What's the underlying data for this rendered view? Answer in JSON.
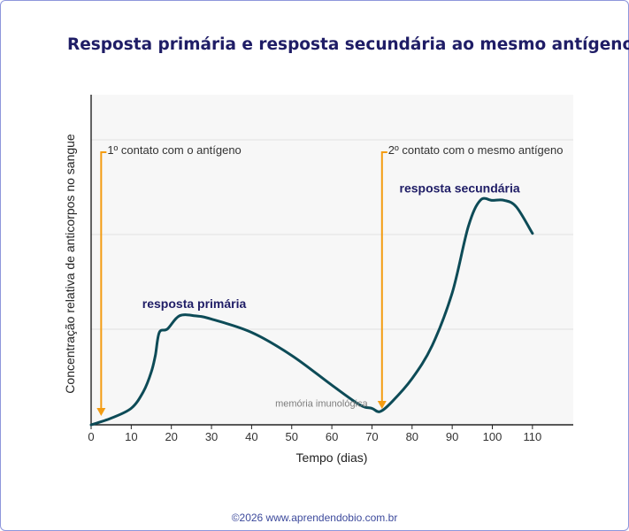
{
  "title": "Resposta primária e resposta secundária ao mesmo antígeno",
  "credit": "©2026 www.aprendendobio.com.br",
  "colors": {
    "curve": "#0d4b57",
    "arrow": "#f39c12",
    "plot_bg": "#f7f7f7",
    "grid": "#e2e2e2",
    "title": "#1f1d66",
    "frame": "#8e97dc"
  },
  "chart_data": {
    "type": "line",
    "xlabel": "Tempo (dias)",
    "ylabel": "Concentração relativa de anticorpos no sangue",
    "xlim": [
      0,
      120
    ],
    "ylim": [
      0,
      100
    ],
    "xticks": [
      0,
      10,
      20,
      30,
      40,
      50,
      60,
      70,
      80,
      90,
      100,
      110
    ],
    "x_tick_labels": [
      "0",
      "10",
      "20",
      "30",
      "40",
      "50",
      "60",
      "70",
      "80",
      "90",
      "100",
      "110"
    ],
    "grid": true,
    "series": [
      {
        "x": [
          0,
          5,
          10,
          13,
          15,
          16,
          17,
          19,
          22,
          26,
          30,
          40,
          50,
          60,
          67,
          70,
          72,
          75,
          80,
          85,
          90,
          94,
          97,
          100,
          103,
          106,
          110
        ],
        "y": [
          0,
          2,
          5,
          10,
          16,
          21,
          28,
          29,
          33,
          33,
          32,
          28,
          21,
          12,
          6,
          5,
          4,
          7,
          14,
          24,
          40,
          60,
          68,
          68,
          68,
          66,
          58
        ]
      }
    ],
    "annotations": [
      {
        "text": "1º contato com o antígeno",
        "x": 2.5,
        "kind": "arrow"
      },
      {
        "text": "2º contato com o mesmo antígeno",
        "x": 72.5,
        "kind": "arrow"
      },
      {
        "text": "resposta primária",
        "x": 37,
        "y": 37,
        "kind": "label"
      },
      {
        "text": "resposta secundária",
        "x": 100,
        "y": 72,
        "kind": "label"
      },
      {
        "text": "memória imunológica",
        "x": 53,
        "y": 6,
        "kind": "note"
      }
    ]
  }
}
